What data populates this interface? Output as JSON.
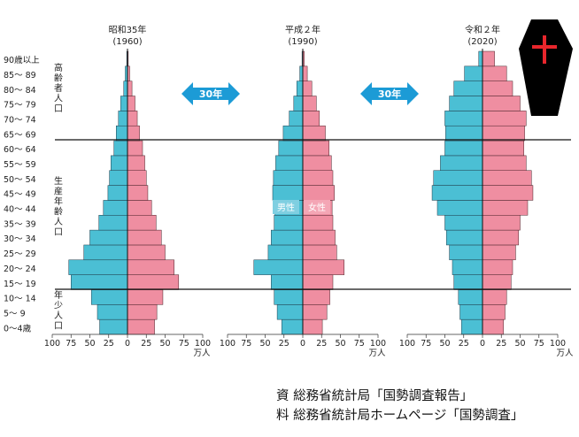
{
  "chart_data": {
    "type": "bar",
    "subtype": "population-pyramid",
    "value_unit": "万人",
    "age_groups": [
      "0～4歳",
      "5～ 9",
      "10～14",
      "15～19",
      "20～24",
      "25～29",
      "30～34",
      "35～39",
      "40～44",
      "45～49",
      "50～54",
      "55～59",
      "60～64",
      "65～69",
      "70～74",
      "75～79",
      "80～84",
      "85～89",
      "90歳以上"
    ],
    "age_labels": [
      "90歳以上",
      "85～ 89",
      "80～ 84",
      "75～ 79",
      "70～ 74",
      "65～ 69",
      "60～ 64",
      "55～ 59",
      "50～ 54",
      "45～ 49",
      "40～ 44",
      "35～ 39",
      "30～ 34",
      "25～ 29",
      "20～ 24",
      "15～ 19",
      "10～ 14",
      "5～ 9",
      "0～4歳"
    ],
    "xlim": [
      -100,
      100
    ],
    "x_ticks": [
      "100",
      "75",
      "50",
      "25",
      "0",
      "25",
      "50",
      "75",
      "100"
    ],
    "pyramids": [
      {
        "title_line1": "昭和35年",
        "title_line2": "(1960)",
        "male": [
          37,
          40,
          48,
          75,
          78,
          58,
          50,
          38,
          32,
          26,
          24,
          22,
          18,
          15,
          12,
          9,
          5,
          3,
          1
        ],
        "female": [
          36,
          39,
          47,
          68,
          62,
          50,
          45,
          38,
          32,
          27,
          25,
          23,
          20,
          16,
          13,
          10,
          6,
          3,
          1
        ]
      },
      {
        "title_line1": "平成２年",
        "title_line2": "(1990)",
        "male": [
          28,
          34,
          38,
          42,
          65,
          46,
          42,
          38,
          37,
          40,
          39,
          36,
          32,
          26,
          18,
          12,
          8,
          4,
          1
        ],
        "female": [
          26,
          32,
          36,
          40,
          55,
          45,
          43,
          40,
          39,
          42,
          40,
          38,
          35,
          30,
          22,
          18,
          12,
          6,
          2
        ]
      },
      {
        "title_line1": "令和２年",
        "title_line2": "(2020)",
        "male": [
          28,
          30,
          32,
          38,
          40,
          44,
          48,
          50,
          60,
          67,
          65,
          56,
          50,
          49,
          50,
          44,
          38,
          24,
          5
        ],
        "female": [
          28,
          30,
          32,
          38,
          40,
          44,
          48,
          50,
          60,
          67,
          65,
          58,
          55,
          56,
          58,
          50,
          40,
          32,
          16
        ]
      }
    ],
    "arrow_label": "30年",
    "male_label": "男性",
    "female_label": "女性",
    "group_labels": [
      {
        "id": "elderly",
        "text": "高齢者人口"
      },
      {
        "id": "working",
        "text": "生産年齢人口"
      },
      {
        "id": "young",
        "text": "年少人口"
      }
    ],
    "colors": {
      "male": "#4bbfd4",
      "female": "#ef8ea1",
      "arrow": "#1c9bd6",
      "label_box": "#7fcfe1",
      "coffin": "#000000",
      "cross": "#e8262c"
    }
  },
  "source": {
    "line1": "資 総務省統計局「国勢調査報告」",
    "line2": "料 総務省統計局ホームページ「国勢調査」"
  }
}
